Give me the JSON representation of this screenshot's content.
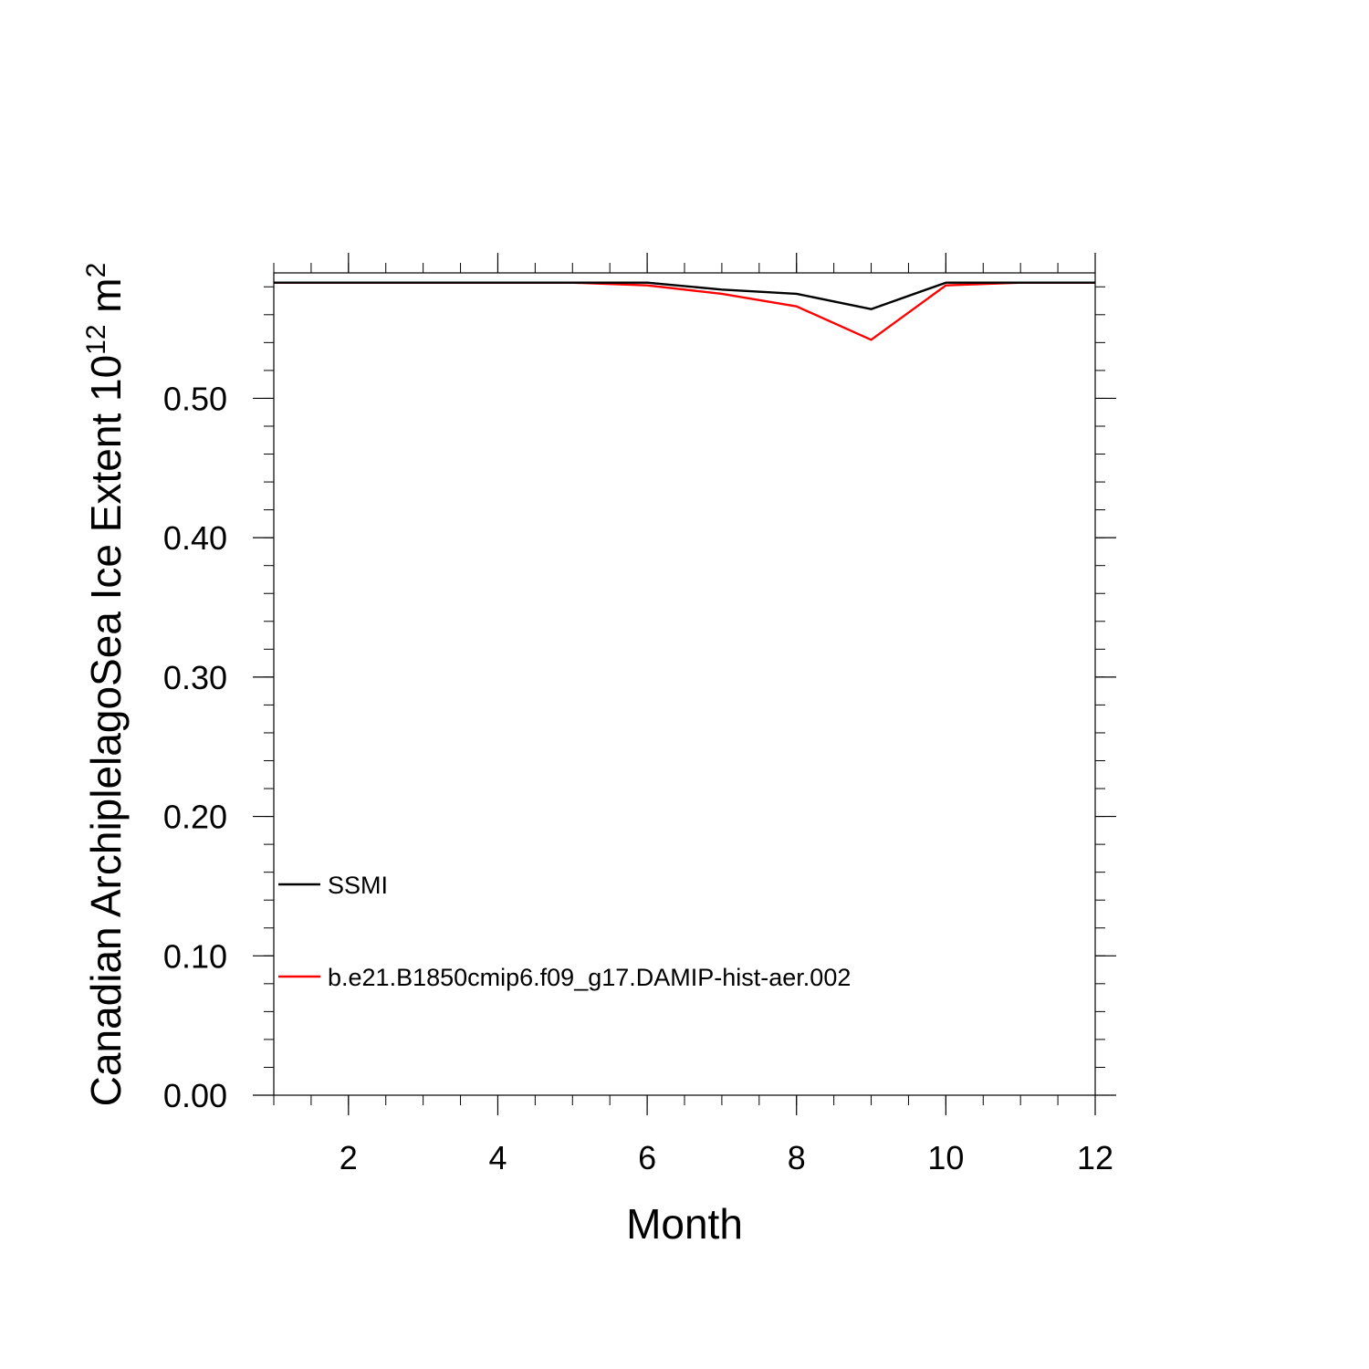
{
  "chart_data": {
    "type": "line",
    "xlabel": "Month",
    "ylabel": {
      "main": "Canadian ArchiplelagoSea Ice Extent 10",
      "exponent": "12",
      "unit_suffix": " m",
      "unit_exponent": "2"
    },
    "xlim": [
      1,
      12
    ],
    "ylim": [
      0,
      0.59
    ],
    "x_ticks": [
      2,
      4,
      6,
      8,
      10,
      12
    ],
    "x_tick_labels": [
      "2",
      "4",
      "6",
      "8",
      "10",
      "12"
    ],
    "y_ticks": [
      0,
      0.1,
      0.2,
      0.3,
      0.4,
      0.5
    ],
    "y_tick_labels": [
      "0.00",
      "0.10",
      "0.20",
      "0.30",
      "0.40",
      "0.50"
    ],
    "legend_position": "left",
    "series": [
      {
        "name": "SSMI",
        "color": "#000000",
        "x": [
          1,
          2,
          3,
          4,
          5,
          6,
          7,
          8,
          9,
          10,
          11,
          12
        ],
        "y": [
          0.583,
          0.583,
          0.583,
          0.583,
          0.583,
          0.583,
          0.578,
          0.575,
          0.564,
          0.583,
          0.583,
          0.583
        ]
      },
      {
        "name": "b.e21.B1850cmip6.f09_g17.DAMIP-hist-aer.002",
        "color": "#ff0000",
        "x": [
          1,
          2,
          3,
          4,
          5,
          6,
          7,
          8,
          9,
          10,
          11,
          12
        ],
        "y": [
          0.583,
          0.583,
          0.583,
          0.583,
          0.583,
          0.581,
          0.575,
          0.566,
          0.542,
          0.581,
          0.583,
          0.583
        ]
      }
    ]
  }
}
